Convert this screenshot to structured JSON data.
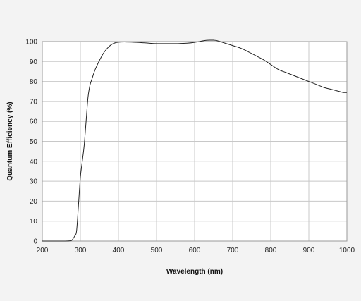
{
  "chart_data": {
    "type": "line",
    "title": "",
    "xlabel": "Wavelength (nm)",
    "ylabel": "Quantum Efficiency (%)",
    "xlim": [
      200,
      1000
    ],
    "ylim": [
      0,
      100
    ],
    "xticks": [
      200,
      300,
      400,
      500,
      600,
      700,
      800,
      900,
      1000
    ],
    "yticks": [
      0,
      10,
      20,
      30,
      40,
      50,
      60,
      70,
      80,
      90,
      100
    ],
    "grid": true,
    "legend": "none",
    "line_color": "#222222",
    "grid_color": "#c8c8c8",
    "background_color": "#f3f3f3",
    "plot_background_color": "#ffffff",
    "series": [
      {
        "x": [
          200,
          260,
          275,
          280,
          285,
          290,
          295,
          300,
          305,
          310,
          315,
          320,
          325,
          330,
          335,
          340,
          350,
          360,
          370,
          380,
          390,
          400,
          420,
          450,
          480,
          500,
          550,
          580,
          600,
          620,
          630,
          640,
          650,
          660,
          680,
          700,
          720,
          740,
          760,
          780,
          800,
          820,
          840,
          860,
          880,
          900,
          920,
          940,
          960,
          980,
          990,
          1000
        ],
        "y": [
          0,
          0,
          0.2,
          1,
          2.5,
          5,
          18,
          32,
          40,
          48,
          60,
          72,
          78,
          81,
          84,
          86.5,
          90.5,
          94,
          96.5,
          98.3,
          99.3,
          99.7,
          99.8,
          99.6,
          99.2,
          99,
          99,
          99.2,
          99.6,
          100.3,
          100.6,
          100.7,
          100.7,
          100.4,
          99.2,
          98,
          96.8,
          95,
          93,
          91,
          88.5,
          86,
          84.5,
          83,
          81.5,
          80,
          78.5,
          77,
          76,
          75,
          74.5,
          74.5
        ]
      }
    ]
  }
}
